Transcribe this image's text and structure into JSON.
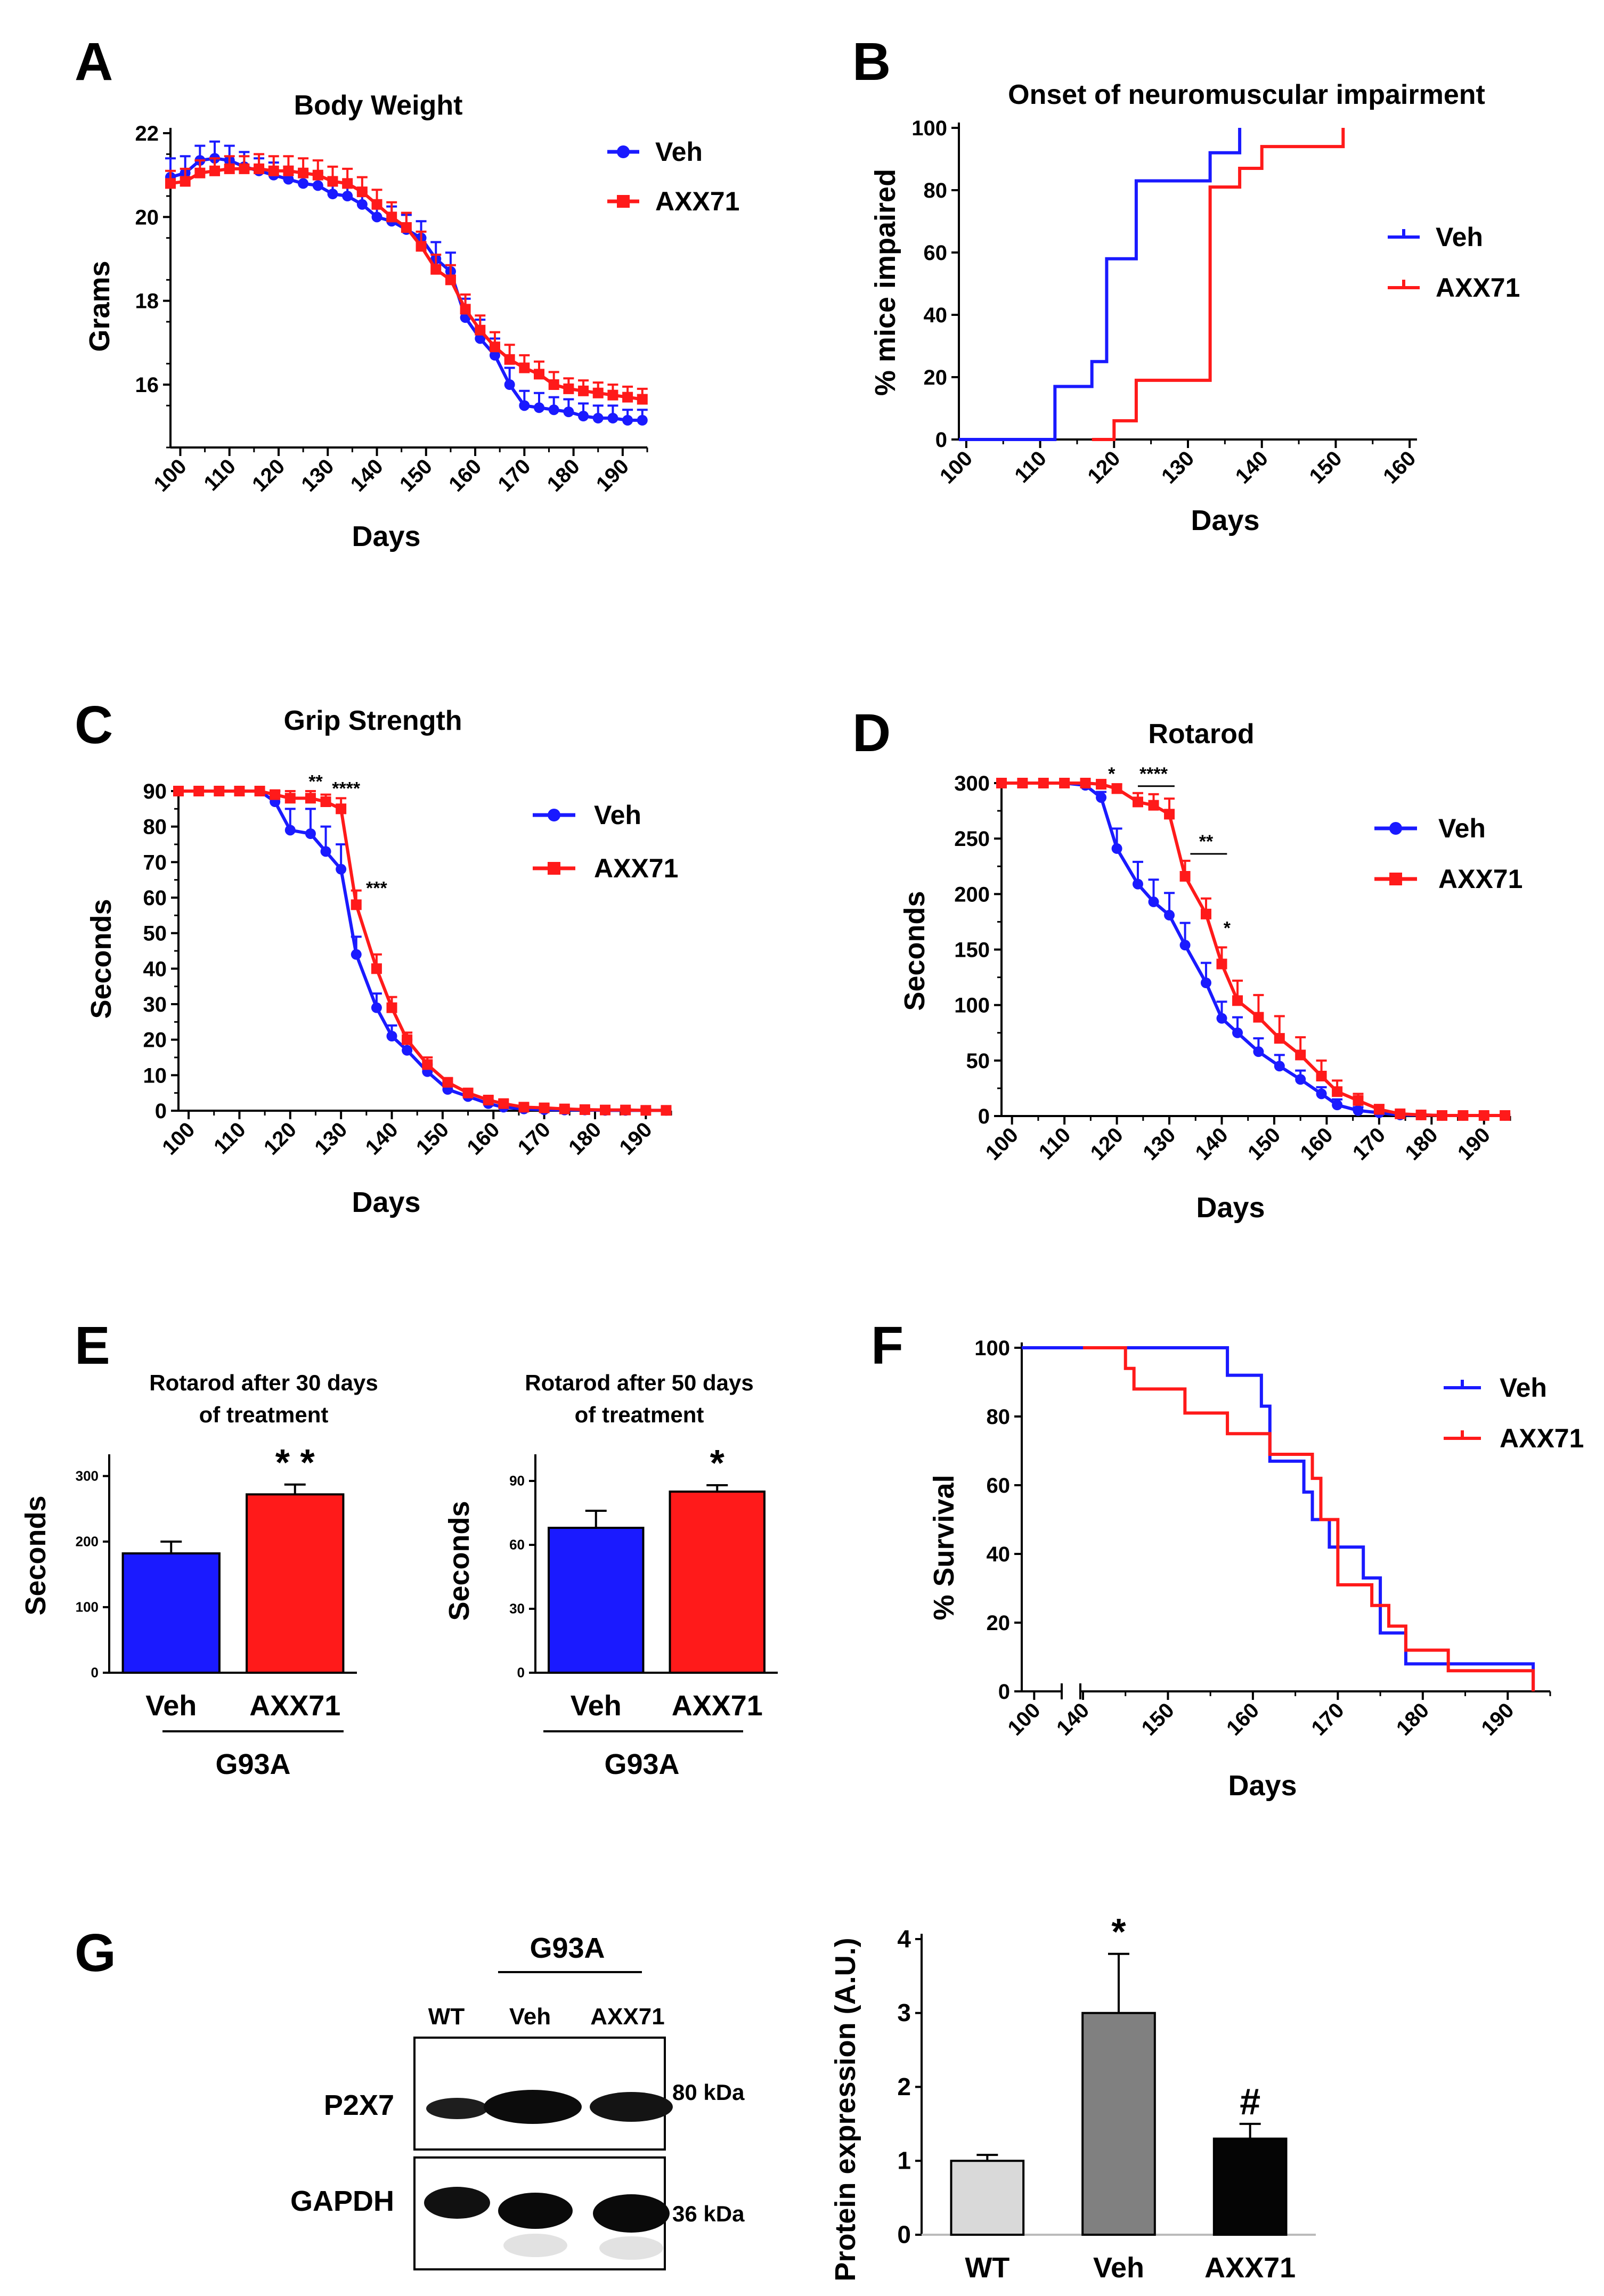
{
  "colors": {
    "veh": "#1a1aff",
    "axx71": "#ff1a1a",
    "wt_bar": "#d9d9d9",
    "veh_bar": "#808080",
    "axx_bar": "#050505"
  },
  "chart_data": [
    {
      "id": "A",
      "panel_label": "A",
      "type": "line",
      "title": "Body Weight",
      "xlabel": "Days",
      "ylabel": "Grams",
      "xlim": [
        98,
        195
      ],
      "ylim": [
        14.5,
        22
      ],
      "xticks": [
        100,
        110,
        120,
        130,
        140,
        150,
        160,
        170,
        180,
        190
      ],
      "yticks": [
        16,
        18,
        20,
        22
      ],
      "series": [
        {
          "name": "Veh",
          "color_key": "veh",
          "marker": "circle",
          "x": [
            98,
            101,
            104,
            107,
            110,
            113,
            116,
            119,
            122,
            125,
            128,
            131,
            134,
            137,
            140,
            143,
            146,
            149,
            152,
            155,
            158,
            161,
            164,
            167,
            170,
            173,
            176,
            179,
            182,
            185,
            188,
            191,
            194
          ],
          "y": [
            20.95,
            21.05,
            21.35,
            21.4,
            21.35,
            21.2,
            21.1,
            21.0,
            20.9,
            20.8,
            20.75,
            20.55,
            20.5,
            20.3,
            20.0,
            19.9,
            19.7,
            19.5,
            19.0,
            18.7,
            17.6,
            17.1,
            16.7,
            16.0,
            15.5,
            15.45,
            15.4,
            15.35,
            15.25,
            15.2,
            15.2,
            15.15,
            15.15
          ],
          "err": [
            0.45,
            0.4,
            0.35,
            0.4,
            0.35,
            0.35,
            0.3,
            0.3,
            0.3,
            0.3,
            0.3,
            0.3,
            0.3,
            0.3,
            0.3,
            0.35,
            0.35,
            0.4,
            0.4,
            0.45,
            0.45,
            0.45,
            0.4,
            0.4,
            0.35,
            0.35,
            0.3,
            0.3,
            0.3,
            0.3,
            0.3,
            0.25,
            0.25
          ]
        },
        {
          "name": "AXX71",
          "color_key": "axx71",
          "marker": "square",
          "x": [
            98,
            101,
            104,
            107,
            110,
            113,
            116,
            119,
            122,
            125,
            128,
            131,
            134,
            137,
            140,
            143,
            146,
            149,
            152,
            155,
            158,
            161,
            164,
            167,
            170,
            173,
            176,
            179,
            182,
            185,
            188,
            191,
            194
          ],
          "y": [
            20.8,
            20.85,
            21.05,
            21.1,
            21.15,
            21.15,
            21.15,
            21.1,
            21.1,
            21.05,
            21.0,
            20.85,
            20.8,
            20.6,
            20.3,
            20.0,
            19.75,
            19.3,
            18.75,
            18.5,
            17.8,
            17.3,
            16.9,
            16.6,
            16.4,
            16.25,
            16.0,
            15.9,
            15.85,
            15.8,
            15.75,
            15.7,
            15.65
          ],
          "err": [
            0.3,
            0.3,
            0.3,
            0.3,
            0.3,
            0.3,
            0.35,
            0.35,
            0.35,
            0.35,
            0.35,
            0.35,
            0.35,
            0.35,
            0.35,
            0.35,
            0.35,
            0.35,
            0.35,
            0.35,
            0.35,
            0.35,
            0.35,
            0.35,
            0.3,
            0.3,
            0.3,
            0.25,
            0.25,
            0.25,
            0.25,
            0.25,
            0.25
          ]
        }
      ],
      "annotations": []
    },
    {
      "id": "B",
      "panel_label": "B",
      "type": "step",
      "title": "Onset of neuromuscular impairment",
      "xlabel": "Days",
      "ylabel": "% mice impaired",
      "xlim": [
        99,
        161
      ],
      "ylim": [
        0,
        100
      ],
      "xticks": [
        100,
        110,
        120,
        130,
        140,
        150,
        160
      ],
      "yticks": [
        0,
        20,
        40,
        60,
        80,
        100
      ],
      "series": [
        {
          "name": "Veh",
          "color_key": "veh",
          "x": [
            99,
            112,
            112,
            117,
            117,
            119,
            119,
            123,
            123,
            133,
            133,
            137,
            137
          ],
          "y": [
            0,
            0,
            17,
            17,
            25,
            25,
            58,
            58,
            83,
            83,
            92,
            92,
            100
          ]
        },
        {
          "name": "AXX71",
          "color_key": "axx71",
          "x": [
            117,
            120,
            120,
            123,
            123,
            133,
            133,
            137,
            137,
            140,
            140,
            151,
            151
          ],
          "y": [
            0,
            0,
            6,
            6,
            19,
            19,
            81,
            81,
            87,
            87,
            94,
            94,
            100
          ]
        }
      ],
      "annotations": []
    },
    {
      "id": "C",
      "panel_label": "C",
      "type": "line",
      "title": "Grip Strength",
      "xlabel": "Days",
      "ylabel": "Seconds",
      "xlim": [
        98,
        195
      ],
      "ylim": [
        0,
        90
      ],
      "xticks": [
        100,
        110,
        120,
        130,
        140,
        150,
        160,
        170,
        180,
        190
      ],
      "yticks": [
        0,
        10,
        20,
        30,
        40,
        50,
        60,
        70,
        80,
        90
      ],
      "series": [
        {
          "name": "Veh",
          "color_key": "veh",
          "marker": "circle",
          "x": [
            98,
            102,
            106,
            110,
            114,
            117,
            120,
            124,
            127,
            130,
            133,
            137,
            140,
            143,
            147,
            151,
            155,
            159,
            162,
            166,
            170,
            174,
            178,
            182,
            186,
            190,
            194
          ],
          "y": [
            90,
            90,
            90,
            90,
            90,
            87,
            79,
            78,
            73,
            68,
            44,
            29,
            21,
            17,
            11,
            6,
            4,
            2,
            1,
            0.5,
            0.3,
            0.2,
            0.2,
            0.1,
            0.1,
            0.1,
            0.1
          ],
          "err": [
            0,
            0,
            0,
            0,
            0,
            3,
            6,
            7,
            7,
            7,
            5,
            4,
            3,
            3,
            2,
            2,
            1,
            1,
            1,
            1,
            0.5,
            0.5,
            0.5,
            0.5,
            0.5,
            0.5,
            0.5
          ]
        },
        {
          "name": "AXX71",
          "color_key": "axx71",
          "marker": "square",
          "x": [
            98,
            102,
            106,
            110,
            114,
            117,
            120,
            124,
            127,
            130,
            133,
            137,
            140,
            143,
            147,
            151,
            155,
            159,
            162,
            166,
            170,
            174,
            178,
            182,
            186,
            190,
            194
          ],
          "y": [
            90,
            90,
            90,
            90,
            90,
            89,
            88,
            88,
            87,
            85,
            58,
            40,
            29,
            20,
            13,
            8,
            5,
            3,
            2,
            1,
            0.8,
            0.5,
            0.3,
            0.2,
            0.2,
            0.1,
            0.1
          ],
          "err": [
            0,
            0,
            0,
            0,
            0,
            1,
            2,
            2,
            2,
            3,
            4,
            4,
            3,
            2,
            2,
            1,
            1,
            1,
            1,
            1,
            1,
            0.5,
            0.5,
            0.5,
            0.5,
            0.5,
            0.5
          ]
        }
      ],
      "annotations": [
        {
          "text": "**",
          "x": 125,
          "y": 91
        },
        {
          "text": "****",
          "x": 131,
          "y": 89
        },
        {
          "text": "***",
          "x": 137,
          "y": 61
        }
      ]
    },
    {
      "id": "D",
      "panel_label": "D",
      "type": "line",
      "title": "Rotarod",
      "xlabel": "Days",
      "ylabel": "Seconds",
      "xlim": [
        98,
        195
      ],
      "ylim": [
        0,
        300
      ],
      "xticks": [
        100,
        110,
        120,
        130,
        140,
        150,
        160,
        170,
        180,
        190
      ],
      "yticks": [
        0,
        50,
        100,
        150,
        200,
        250,
        300
      ],
      "series": [
        {
          "name": "Veh",
          "color_key": "veh",
          "marker": "circle",
          "x": [
            98,
            102,
            106,
            110,
            114,
            117,
            120,
            124,
            127,
            130,
            133,
            137,
            140,
            143,
            147,
            151,
            155,
            159,
            162,
            166,
            170,
            174,
            178,
            182,
            186,
            190,
            194
          ],
          "y": [
            300,
            300,
            300,
            300,
            298,
            287,
            241,
            209,
            193,
            181,
            154,
            120,
            88,
            75,
            58,
            45,
            33,
            20,
            10,
            5,
            3,
            1,
            1,
            0.5,
            0.5,
            0.5,
            0.5
          ],
          "err": [
            0,
            0,
            0,
            0,
            2,
            5,
            18,
            20,
            20,
            20,
            20,
            18,
            15,
            14,
            12,
            10,
            8,
            6,
            5,
            3,
            2,
            1,
            1,
            1,
            1,
            1,
            1
          ]
        },
        {
          "name": "AXX71",
          "color_key": "axx71",
          "marker": "square",
          "x": [
            98,
            102,
            106,
            110,
            114,
            117,
            120,
            124,
            127,
            130,
            133,
            137,
            140,
            143,
            147,
            151,
            155,
            159,
            162,
            166,
            170,
            174,
            178,
            182,
            186,
            190,
            194
          ],
          "y": [
            300,
            300,
            300,
            300,
            300,
            299,
            295,
            283,
            280,
            272,
            216,
            182,
            137,
            104,
            89,
            70,
            55,
            36,
            22,
            14,
            6,
            2,
            1,
            0.5,
            0.5,
            0.5,
            0.5
          ],
          "err": [
            0,
            0,
            0,
            0,
            0,
            1,
            4,
            8,
            10,
            14,
            14,
            14,
            15,
            18,
            20,
            20,
            16,
            14,
            10,
            6,
            4,
            2,
            1,
            1,
            1,
            1,
            1
          ]
        }
      ],
      "annotations": [
        {
          "text": "*",
          "x": 119,
          "y": 303
        },
        {
          "text": "****",
          "x": 127,
          "y": 303,
          "bar": [
            124,
            131
          ]
        },
        {
          "text": "**",
          "x": 137,
          "y": 242,
          "bar": [
            134,
            141
          ]
        },
        {
          "text": "*",
          "x": 141,
          "y": 164
        }
      ]
    },
    {
      "id": "E1",
      "panel_label": "E",
      "type": "bar",
      "title": "Rotarod after 30 days",
      "title_line2": "of treatment",
      "ylabel": "Seconds",
      "ylim": [
        0,
        325
      ],
      "yticks": [
        0,
        100,
        200,
        300
      ],
      "categories": [
        "Veh",
        "AXX71"
      ],
      "group_label": "G93A",
      "values": [
        182,
        272
      ],
      "errors": [
        18,
        15
      ],
      "color_keys": [
        "veh",
        "axx71"
      ],
      "sig": [
        "",
        "* *"
      ]
    },
    {
      "id": "E2",
      "panel_label": "",
      "type": "bar",
      "title": "Rotarod after 50 days",
      "title_line2": "of treatment",
      "ylabel": "Seconds",
      "ylim": [
        0,
        100
      ],
      "yticks": [
        0,
        30,
        60,
        90
      ],
      "categories": [
        "Veh",
        "AXX71"
      ],
      "group_label": "G93A",
      "values": [
        68,
        85
      ],
      "errors": [
        8,
        3
      ],
      "color_keys": [
        "veh",
        "axx71"
      ],
      "sig": [
        "",
        "*"
      ]
    },
    {
      "id": "F",
      "panel_label": "F",
      "type": "step",
      "title": "",
      "xlabel": "Days",
      "ylabel": "% Survival",
      "xlim": [
        98,
        195
      ],
      "ylim": [
        0,
        100
      ],
      "xticks": [
        100,
        140,
        150,
        160,
        170,
        180,
        190
      ],
      "yticks": [
        0,
        20,
        40,
        60,
        80,
        100
      ],
      "axis_break": [
        104,
        140
      ],
      "series": [
        {
          "name": "Veh",
          "color_key": "veh",
          "x": [
            98,
            157,
            157,
            161,
            161,
            162,
            162,
            166,
            166,
            167,
            167,
            169,
            169,
            173,
            173,
            175,
            175,
            178,
            178,
            193,
            193
          ],
          "y": [
            100,
            100,
            92,
            92,
            83,
            83,
            67,
            67,
            58,
            58,
            50,
            50,
            42,
            42,
            33,
            33,
            17,
            17,
            8,
            8,
            0
          ]
        },
        {
          "name": "AXX71",
          "color_key": "axx71",
          "x": [
            140,
            145,
            145,
            146,
            146,
            152,
            152,
            157,
            157,
            162,
            162,
            167,
            167,
            168,
            168,
            170,
            170,
            174,
            174,
            176,
            176,
            178,
            178,
            183,
            183,
            193,
            193
          ],
          "y": [
            100,
            100,
            94,
            94,
            88,
            88,
            81,
            81,
            75,
            75,
            69,
            69,
            62,
            62,
            50,
            50,
            31,
            31,
            25,
            25,
            19,
            19,
            12,
            12,
            6,
            6,
            0
          ]
        }
      ],
      "annotations": []
    },
    {
      "id": "G2",
      "panel_label": "",
      "type": "bar",
      "title": "",
      "ylabel": "Protein expression (A.U.)",
      "ylim": [
        0,
        4
      ],
      "yticks": [
        0,
        1,
        2,
        3,
        4
      ],
      "categories": [
        "WT",
        "Veh",
        "AXX71"
      ],
      "values": [
        1.0,
        3.0,
        1.3
      ],
      "errors": [
        0.08,
        0.8,
        0.2
      ],
      "color_keys": [
        "wt_bar",
        "veh_bar",
        "axx_bar"
      ],
      "sig": [
        "",
        "*",
        "#"
      ]
    }
  ],
  "legend": {
    "veh": "Veh",
    "axx71": "AXX71"
  },
  "blot": {
    "panel_label": "G",
    "group_label": "G93A",
    "lane_labels": [
      "WT",
      "Veh",
      "AXX71"
    ],
    "row_labels": [
      "P2X7",
      "GAPDH"
    ],
    "size_labels": [
      "80 kDa",
      "36 kDa"
    ]
  }
}
